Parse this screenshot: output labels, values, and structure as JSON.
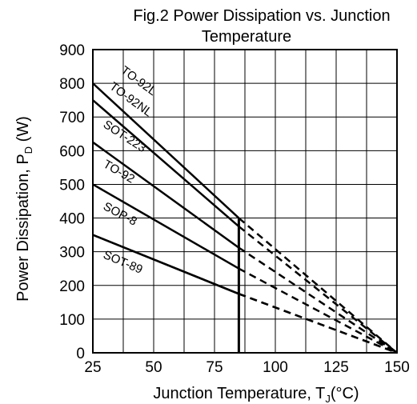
{
  "chart_data": {
    "type": "line",
    "title_line1": "Fig.2 Power Dissipation vs. Junction",
    "title_line2": "Temperature",
    "xlabel_main": "Junction Temperature, T",
    "xlabel_sub": "J",
    "xlabel_unit": "(°C)",
    "ylabel_main": "Power Dissipation, P",
    "ylabel_sub": "D",
    "ylabel_unit": " (W)",
    "xlim": [
      25,
      150
    ],
    "ylim": [
      0,
      900
    ],
    "xticks": [
      25,
      50,
      75,
      100,
      125,
      150
    ],
    "yticks": [
      0,
      100,
      200,
      300,
      400,
      500,
      600,
      700,
      800,
      900
    ],
    "x_minor_gridlines": [
      37.5,
      62.5,
      87.5,
      112.5,
      137.5
    ],
    "grid": true,
    "derating_x": 85,
    "series": [
      {
        "name": "TO-92L",
        "solid": [
          [
            25,
            800
          ],
          [
            85,
            400
          ]
        ],
        "dashed": [
          [
            85,
            400
          ],
          [
            150,
            0
          ]
        ]
      },
      {
        "name": "TO-92NL",
        "solid": [
          [
            25,
            750
          ],
          [
            85,
            375
          ]
        ],
        "dashed": [
          [
            85,
            375
          ],
          [
            150,
            0
          ]
        ]
      },
      {
        "name": "SOT-223",
        "solid": [
          [
            25,
            625
          ],
          [
            85,
            312
          ]
        ],
        "dashed": [
          [
            85,
            312
          ],
          [
            150,
            0
          ]
        ]
      },
      {
        "name": "TO-92",
        "solid": [
          [
            25,
            500
          ],
          [
            85,
            250
          ]
        ],
        "dashed": [
          [
            85,
            250
          ],
          [
            150,
            0
          ]
        ]
      },
      {
        "name": "SOP-8",
        "solid": [
          [
            25,
            350
          ],
          [
            85,
            175
          ]
        ],
        "dashed": [
          [
            85,
            175
          ],
          [
            150,
            0
          ]
        ]
      },
      {
        "name": "SOT-89",
        "solid": [
          [
            25,
            350
          ],
          [
            85,
            175
          ]
        ],
        "dashed": [
          [
            85,
            175
          ],
          [
            150,
            0
          ]
        ]
      }
    ]
  }
}
